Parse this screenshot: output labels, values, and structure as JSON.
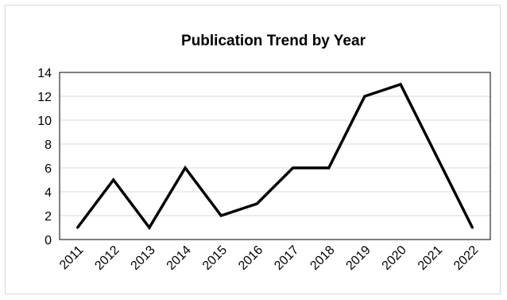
{
  "chart_data": {
    "type": "line",
    "title": "Publication Trend by Year",
    "xlabel": "",
    "ylabel": "",
    "categories": [
      "2011",
      "2012",
      "2013",
      "2014",
      "2015",
      "2016",
      "2017",
      "2018",
      "2019",
      "2020",
      "2021",
      "2022"
    ],
    "series": [
      {
        "values": [
          1,
          5,
          1,
          6,
          2,
          3,
          6,
          6,
          12,
          13,
          7,
          1
        ]
      }
    ],
    "ylim": [
      0,
      14
    ],
    "yticks": [
      0,
      2,
      4,
      6,
      8,
      10,
      12,
      14
    ],
    "grid": "horizontal",
    "legend": "none",
    "colors": {
      "line": "#000000",
      "grid": "#d9d9d9",
      "plot_border": "#000000"
    }
  }
}
